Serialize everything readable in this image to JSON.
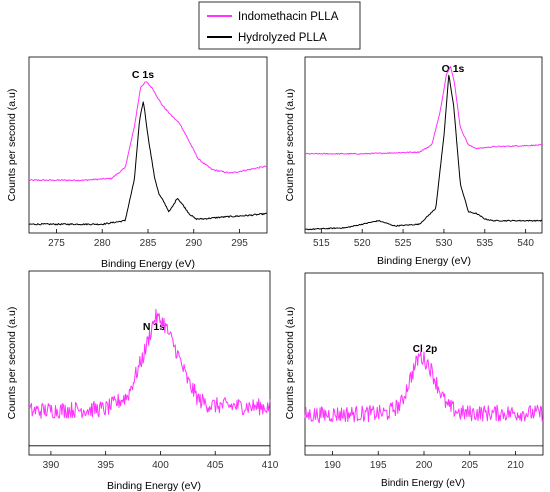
{
  "legend": {
    "entries": [
      {
        "label": "Indomethacin PLLA",
        "color": "#ff33ff"
      },
      {
        "label": "Hydrolyzed PLLA",
        "color": "#000000"
      }
    ]
  },
  "chart_data": [
    {
      "type": "line",
      "title": "C 1s",
      "xlabel": "Binding Energy (eV)",
      "ylabel": "Counts per second (a.u)",
      "xlim": [
        272,
        298
      ],
      "ylim": [
        0,
        1
      ],
      "xticks": [
        275,
        280,
        285,
        290,
        295
      ],
      "series": [
        {
          "name": "Indomethacin PLLA",
          "color": "#ff33ff",
          "noise": 0.004,
          "x": [
            272,
            278,
            281,
            282.5,
            283.5,
            284.2,
            284.8,
            285.5,
            286.5,
            287.5,
            288.5,
            289.5,
            290.5,
            292,
            294,
            296,
            298
          ],
          "y": [
            0.3,
            0.3,
            0.31,
            0.37,
            0.6,
            0.83,
            0.86,
            0.82,
            0.73,
            0.67,
            0.62,
            0.52,
            0.42,
            0.36,
            0.34,
            0.36,
            0.38
          ]
        },
        {
          "name": "Hydrolyzed PLLA",
          "color": "#000000",
          "noise": 0.004,
          "x": [
            272,
            280,
            282.5,
            283.5,
            284.1,
            284.5,
            285,
            285.7,
            286.2,
            286.7,
            287.3,
            287.8,
            288.2,
            288.8,
            289.5,
            290.2,
            291,
            293,
            296,
            298
          ],
          "y": [
            0.05,
            0.05,
            0.07,
            0.3,
            0.65,
            0.75,
            0.55,
            0.32,
            0.22,
            0.18,
            0.12,
            0.16,
            0.2,
            0.16,
            0.11,
            0.08,
            0.08,
            0.09,
            0.1,
            0.11
          ]
        }
      ]
    },
    {
      "type": "line",
      "title": "O 1s",
      "xlabel": "Binding Energy (eV)",
      "ylabel": "Counts per second (a.u)",
      "xlim": [
        513,
        542
      ],
      "ylim": [
        0,
        1
      ],
      "xticks": [
        515,
        520,
        525,
        530,
        535,
        540
      ],
      "series": [
        {
          "name": "Indomethacin PLLA",
          "color": "#ff33ff",
          "noise": 0.003,
          "x": [
            513,
            520,
            527,
            528.5,
            529.5,
            530.3,
            530.8,
            531.3,
            532,
            533,
            534,
            536,
            542
          ],
          "y": [
            0.45,
            0.45,
            0.46,
            0.5,
            0.68,
            0.9,
            0.95,
            0.85,
            0.6,
            0.5,
            0.48,
            0.49,
            0.5
          ]
        },
        {
          "name": "Hydrolyzed PLLA",
          "color": "#000000",
          "noise": 0.003,
          "x": [
            513,
            518,
            520,
            522,
            524,
            527,
            529,
            530,
            530.6,
            531.2,
            532,
            533,
            534,
            535,
            536,
            542
          ],
          "y": [
            0.02,
            0.03,
            0.05,
            0.07,
            0.04,
            0.05,
            0.14,
            0.55,
            0.9,
            0.72,
            0.28,
            0.12,
            0.11,
            0.08,
            0.07,
            0.07
          ]
        }
      ]
    },
    {
      "type": "line",
      "title": "N 1s",
      "xlabel": "Binding Energy (eV)",
      "ylabel": "Counts per second (a.u)",
      "xlim": [
        388,
        410
      ],
      "ylim": [
        0,
        1
      ],
      "xticks": [
        390,
        395,
        400,
        405,
        410
      ],
      "series": [
        {
          "name": "Indomethacin PLLA",
          "color": "#ff33ff",
          "noise": 0.045,
          "x": [
            388,
            395,
            397,
            398.5,
            399.5,
            400.3,
            401.5,
            402.5,
            403.5,
            404.5,
            410
          ],
          "y": [
            0.24,
            0.25,
            0.32,
            0.55,
            0.75,
            0.72,
            0.56,
            0.4,
            0.3,
            0.27,
            0.26
          ]
        },
        {
          "name": "Hydrolyzed PLLA",
          "color": "#000000",
          "noise": 0,
          "x": [
            388,
            410
          ],
          "y": [
            0.05,
            0.05
          ]
        }
      ]
    },
    {
      "type": "line",
      "title": "Cl 2p",
      "xlabel": "Bindin Energy (eV)",
      "ylabel": "Counts per second (a.u)",
      "xlim": [
        187,
        213
      ],
      "ylim": [
        0,
        1
      ],
      "xticks": [
        190,
        195,
        200,
        205,
        210
      ],
      "series": [
        {
          "name": "Indomethacin PLLA",
          "color": "#ff33ff",
          "noise": 0.045,
          "x": [
            187,
            196,
            197.5,
            198.5,
            199.5,
            200.5,
            201.5,
            202.5,
            204,
            213
          ],
          "y": [
            0.22,
            0.23,
            0.28,
            0.42,
            0.55,
            0.5,
            0.38,
            0.27,
            0.23,
            0.23
          ]
        },
        {
          "name": "Hydrolyzed PLLA",
          "color": "#000000",
          "noise": 0,
          "x": [
            187,
            213
          ],
          "y": [
            0.05,
            0.05
          ]
        }
      ]
    }
  ]
}
